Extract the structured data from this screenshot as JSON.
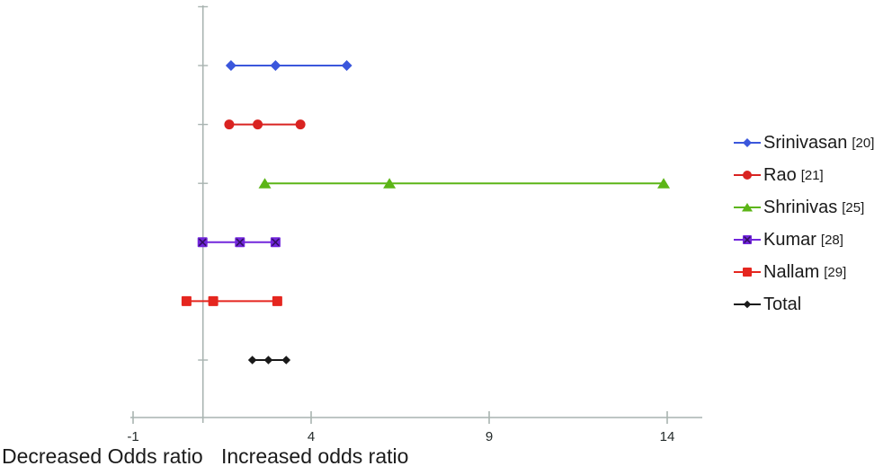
{
  "chart_data": {
    "type": "line",
    "subtype": "forest-plot-of-odds-ratios",
    "title": "",
    "xlabel_left": "Decreased Odds ratio",
    "xlabel_right": "Increased odds ratio",
    "xlim": [
      -1,
      15
    ],
    "grid": false,
    "legend_position": "right",
    "no_effect_line_at": 1,
    "x_axis": {
      "ticks": [
        -1,
        4,
        9,
        14
      ],
      "tick_labels": [
        "-1",
        "4",
        "9",
        "14"
      ]
    },
    "series": [
      {
        "name": "Srinivasan",
        "ref": "[20]",
        "marker": "diamond",
        "color": "#3B57DC",
        "values": [
          1.75,
          3.0,
          5.0
        ],
        "low": 1.75,
        "center": 3.0,
        "high": 5.0
      },
      {
        "name": "Rao",
        "ref": "[21]",
        "marker": "circle",
        "color": "#D92321",
        "values": [
          1.7,
          2.5,
          3.7
        ],
        "low": 1.7,
        "center": 2.5,
        "high": 3.7
      },
      {
        "name": "Shrinivas",
        "ref": "[25]",
        "marker": "triangle",
        "color": "#5CB517",
        "values": [
          2.7,
          6.2,
          13.9
        ],
        "low": 2.7,
        "center": 6.2,
        "high": 13.9
      },
      {
        "name": "Kumar",
        "ref": "[28]",
        "marker": "square-x",
        "color": "#7226DC",
        "x_color": "#321064",
        "values": [
          0.95,
          2.0,
          3.0
        ],
        "low": 0.95,
        "center": 2.0,
        "high": 3.0
      },
      {
        "name": "Nallam",
        "ref": "[29]",
        "marker": "square",
        "color": "#E5261F",
        "values": [
          0.5,
          1.25,
          3.05
        ],
        "low": 0.5,
        "center": 1.25,
        "high": 3.05
      },
      {
        "name": "Total",
        "ref": "",
        "marker": "diamond-small",
        "color": "#1A1A1A",
        "values": [
          2.35,
          2.8,
          3.3
        ],
        "low": 2.35,
        "center": 2.8,
        "high": 3.3
      }
    ]
  },
  "colors": {
    "background": "#FFFFFF",
    "axis": "#A9B4B1",
    "tick_label": "#232A2A",
    "caption": "#1B1B1B",
    "legend_text": "#1A1A1A"
  }
}
